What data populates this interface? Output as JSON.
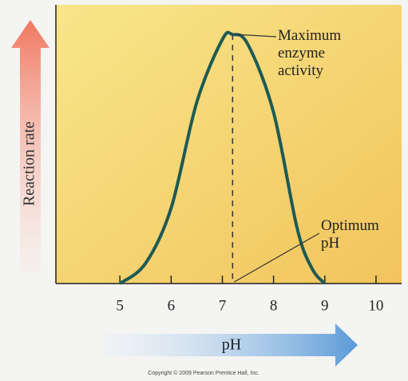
{
  "chart_data": {
    "type": "line",
    "x_label": "pH",
    "y_label": "Reaction rate",
    "xlim": [
      3.75,
      10.5
    ],
    "ylim": [
      0,
      100
    ],
    "xticks": [
      5,
      6,
      7,
      8,
      9,
      10
    ],
    "series": [
      {
        "name": null,
        "color": "#1e5a55",
        "x": [
          5,
          5.5,
          6,
          6.5,
          7,
          7.2,
          7.5,
          8,
          8.46,
          8.75,
          9
        ],
        "values": [
          0,
          8,
          30,
          72,
          97,
          99,
          95,
          68,
          22,
          6,
          0
        ]
      }
    ],
    "annotations": [
      {
        "text": "Maximum enzyme activity",
        "x": 7.2,
        "y": 99
      },
      {
        "text": "Optimum pH",
        "x": 7.2,
        "y": 0
      }
    ],
    "footer": "Copyright © 2009 Pearson Prentice Hall, Inc."
  }
}
